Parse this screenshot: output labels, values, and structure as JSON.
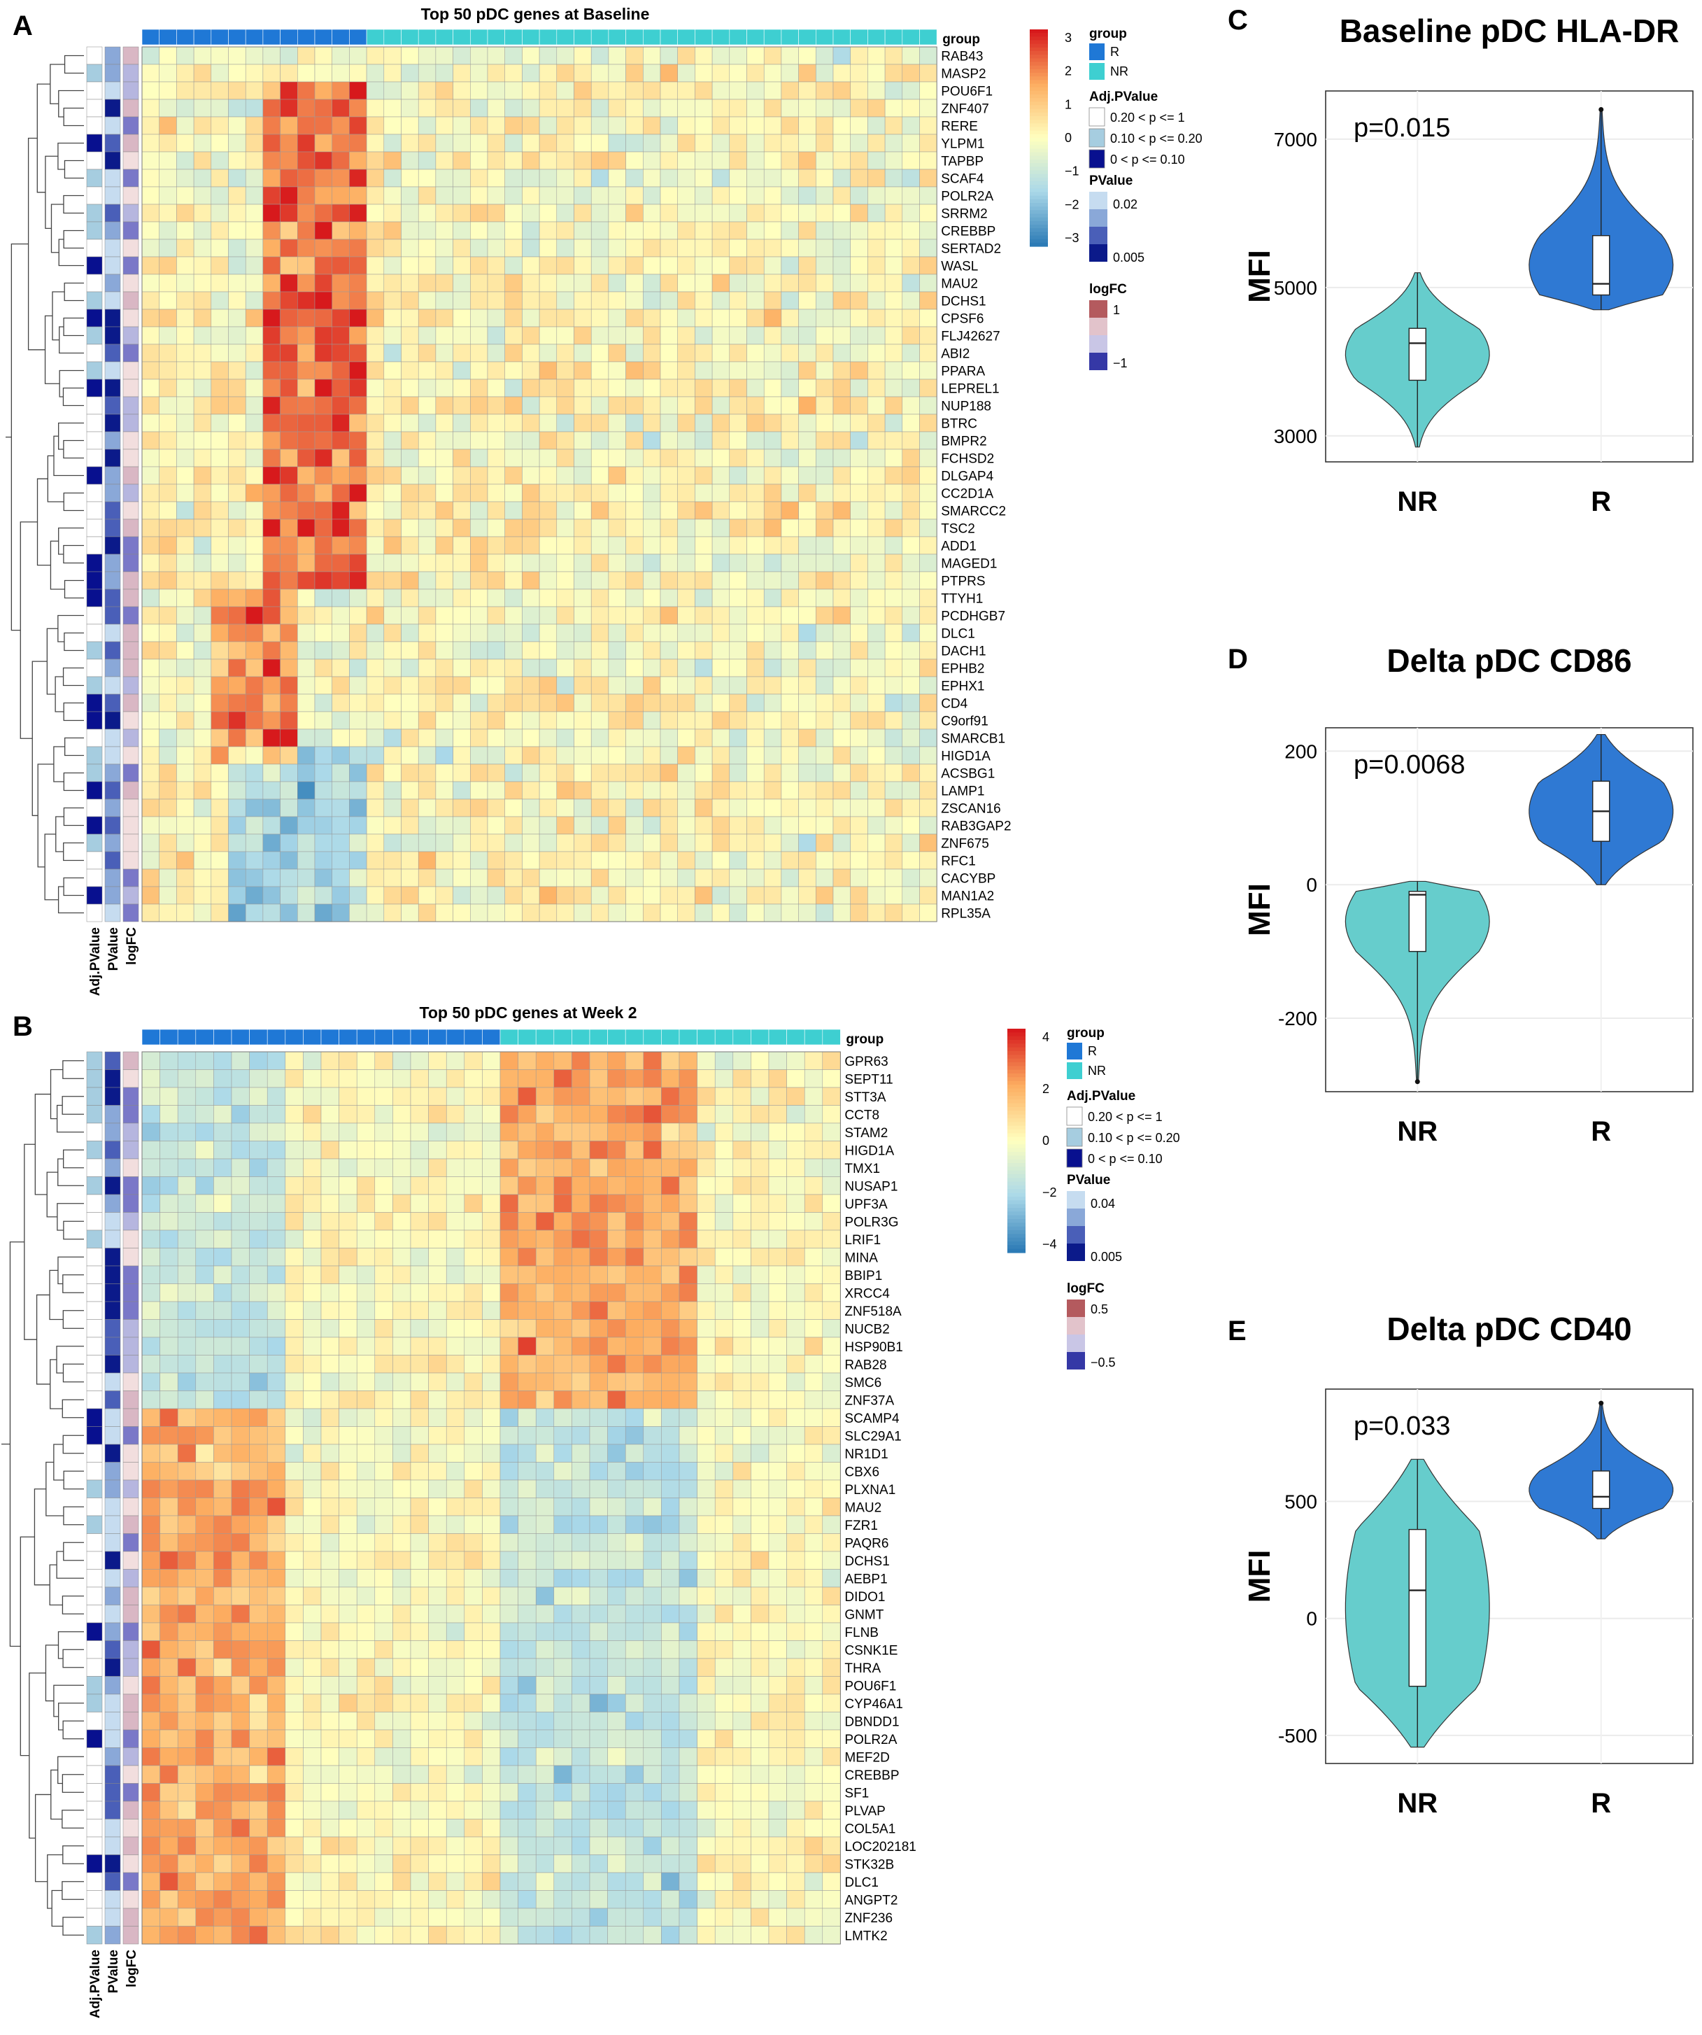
{
  "chart_data": [
    {
      "panel": "A",
      "type": "heatmap",
      "title": "Top 50 pDC genes at Baseline",
      "n_columns": 46,
      "n_R_columns": 13,
      "group_label": "group",
      "row_annotation_labels": [
        "Adj.PValue",
        "PValue",
        "logFC"
      ],
      "genes": [
        "RAB43",
        "MASP2",
        "POU6F1",
        "ZNF407",
        "RERE",
        "YLPM1",
        "TAPBP",
        "SCAF4",
        "POLR2A",
        "SRRM2",
        "CREBBP",
        "SERTAD2",
        "WASL",
        "MAU2",
        "DCHS1",
        "CPSF6",
        "FLJ42627",
        "ABI2",
        "PPARA",
        "LEPREL1",
        "NUP188",
        "BTRC",
        "BMPR2",
        "FCHSD2",
        "DLGAP4",
        "CC2D1A",
        "SMARCC2",
        "TSC2",
        "ADD1",
        "MAGED1",
        "PTPRS",
        "TTYH1",
        "PCDHGB7",
        "DLC1",
        "DACH1",
        "EPHB2",
        "EPHX1",
        "CD4",
        "C9orf91",
        "SMARCB1",
        "HIGD1A",
        "ACSBG1",
        "LAMP1",
        "ZSCAN16",
        "RAB3GAP2",
        "ZNF675",
        "RFC1",
        "CACYBP",
        "MAN1A2",
        "RPL35A"
      ],
      "legend": {
        "color_scale": {
          "title": "",
          "ticks": [
            "3",
            "2",
            "1",
            "0",
            "−1",
            "−2",
            "−3"
          ],
          "range": [
            -3.5,
            3.5
          ]
        },
        "group": {
          "title": "group",
          "entries": [
            {
              "label": "R",
              "color": "#1f78d6"
            },
            {
              "label": "NR",
              "color": "#3ecfd1"
            }
          ]
        },
        "adj_pvalue": {
          "title": "Adj.PValue",
          "entries": [
            {
              "label": "0.20 < p <= 1",
              "color": "#ffffff"
            },
            {
              "label": "0.10 < p <= 0.20",
              "color": "#a6cde0"
            },
            {
              "label": "0 < p <= 0.10",
              "color": "#08108f"
            }
          ]
        },
        "pvalue": {
          "title": "PValue",
          "ticks": [
            "0.02",
            "0.005"
          ]
        },
        "logfc": {
          "title": "logFC",
          "ticks": [
            "1",
            "−1"
          ]
        }
      }
    },
    {
      "panel": "B",
      "type": "heatmap",
      "title": "Top 50 pDC genes at Week 2",
      "n_columns": 39,
      "n_R_columns": 20,
      "group_label": "group",
      "row_annotation_labels": [
        "Adj.PValue",
        "PValue",
        "logFC"
      ],
      "genes": [
        "GPR63",
        "SEPT11",
        "STT3A",
        "CCT8",
        "STAM2",
        "HIGD1A",
        "TMX1",
        "NUSAP1",
        "UPF3A",
        "POLR3G",
        "LRIF1",
        "MINA",
        "BBIP1",
        "XRCC4",
        "ZNF518A",
        "NUCB2",
        "HSP90B1",
        "RAB28",
        "SMC6",
        "ZNF37A",
        "SCAMP4",
        "SLC29A1",
        "NR1D1",
        "CBX6",
        "PLXNA1",
        "MAU2",
        "FZR1",
        "PAQR6",
        "DCHS1",
        "AEBP1",
        "DIDO1",
        "GNMT",
        "FLNB",
        "CSNK1E",
        "THRA",
        "POU6F1",
        "CYP46A1",
        "DBNDD1",
        "POLR2A",
        "MEF2D",
        "CREBBP",
        "SF1",
        "PLVAP",
        "COL5A1",
        "LOC202181",
        "STK32B",
        "DLC1",
        "ANGPT2",
        "ZNF236",
        "LMTK2"
      ],
      "legend": {
        "color_scale": {
          "title": "",
          "ticks": [
            "4",
            "2",
            "0",
            "−2",
            "−4"
          ],
          "range": [
            -5,
            5
          ]
        },
        "group": {
          "title": "group",
          "entries": [
            {
              "label": "R",
              "color": "#1f78d6"
            },
            {
              "label": "NR",
              "color": "#3ecfd1"
            }
          ]
        },
        "adj_pvalue": {
          "title": "Adj.PValue",
          "entries": [
            {
              "label": "0.20 < p <= 1",
              "color": "#ffffff"
            },
            {
              "label": "0.10 < p <= 0.20",
              "color": "#a6cde0"
            },
            {
              "label": "0 < p <= 0.10",
              "color": "#08108f"
            }
          ]
        },
        "pvalue": {
          "title": "PValue",
          "ticks": [
            "0.04",
            "0.005"
          ]
        },
        "logfc": {
          "title": "logFC",
          "ticks": [
            "0.5",
            "−0.5"
          ]
        }
      }
    },
    {
      "panel": "C",
      "type": "violin",
      "title": "Baseline pDC HLA-DR",
      "ylabel": "MFI",
      "p_text": "p=0.015",
      "categories": [
        "NR",
        "R"
      ],
      "yticks": [
        3000,
        5000,
        7000
      ],
      "ylim": [
        2650,
        7650
      ],
      "series": [
        {
          "name": "NR",
          "color": "#66cdcc",
          "min": 2850,
          "q1": 3750,
          "median": 4250,
          "q3": 4450,
          "max": 5200,
          "outliers": []
        },
        {
          "name": "R",
          "color": "#2f79d3",
          "min": 4700,
          "q1": 4900,
          "median": 5050,
          "q3": 5700,
          "max": 7400,
          "outliers": [
            7400
          ]
        }
      ]
    },
    {
      "panel": "D",
      "type": "violin",
      "title": "Delta pDC CD86",
      "ylabel": "MFI",
      "p_text": "p=0.0068",
      "categories": [
        "NR",
        "R"
      ],
      "yticks": [
        -200,
        0,
        200
      ],
      "ylim": [
        -310,
        235
      ],
      "series": [
        {
          "name": "NR",
          "color": "#66cdcc",
          "min": -295,
          "q1": -100,
          "median": -15,
          "q3": -10,
          "max": 5,
          "outliers": [
            -295
          ]
        },
        {
          "name": "R",
          "color": "#2f79d3",
          "min": 0,
          "q1": 65,
          "median": 110,
          "q3": 155,
          "max": 225,
          "outliers": []
        }
      ]
    },
    {
      "panel": "E",
      "type": "violin",
      "title": "Delta pDC CD40",
      "ylabel": "MFI",
      "p_text": "p=0.033",
      "categories": [
        "NR",
        "R"
      ],
      "yticks": [
        -500,
        0,
        500
      ],
      "ylim": [
        -620,
        980
      ],
      "series": [
        {
          "name": "NR",
          "color": "#66cdcc",
          "min": -550,
          "q1": -290,
          "median": 120,
          "q3": 380,
          "max": 680,
          "outliers": []
        },
        {
          "name": "R",
          "color": "#2f79d3",
          "min": 340,
          "q1": 470,
          "median": 520,
          "q3": 630,
          "max": 920,
          "outliers": [
            920
          ]
        }
      ]
    }
  ]
}
